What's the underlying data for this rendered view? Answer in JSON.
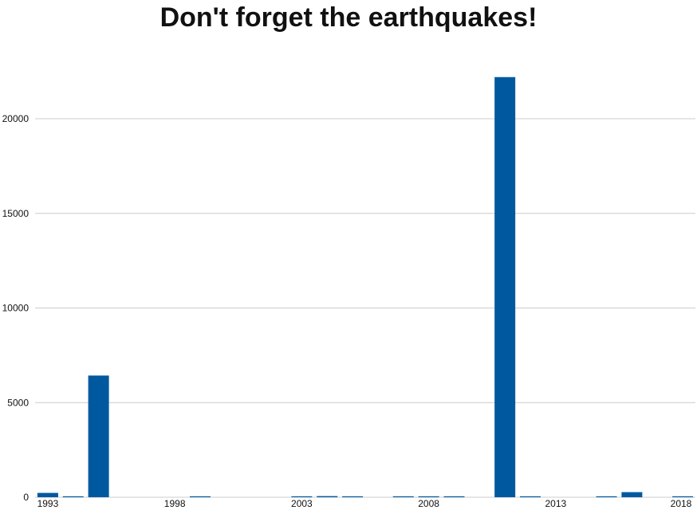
{
  "chart_data": {
    "type": "bar",
    "title": "Don't forget the earthquakes!",
    "xlabel": "",
    "ylabel": "",
    "x": [
      1993,
      1994,
      1995,
      1996,
      1997,
      1998,
      1999,
      2000,
      2001,
      2002,
      2003,
      2004,
      2005,
      2006,
      2007,
      2008,
      2009,
      2010,
      2011,
      2012,
      2013,
      2014,
      2015,
      2016,
      2017,
      2018
    ],
    "values": [
      230,
      15,
      6430,
      0,
      0,
      0,
      5,
      0,
      0,
      0,
      5,
      60,
      10,
      0,
      20,
      20,
      10,
      0,
      22200,
      10,
      0,
      0,
      5,
      270,
      0,
      5
    ],
    "ylim": [
      0,
      22500
    ],
    "yticks": [
      0,
      5000,
      10000,
      15000,
      20000
    ],
    "xticks": [
      1993,
      1998,
      2003,
      2008,
      2013,
      2018
    ],
    "grid": true,
    "legend": "none",
    "bar_color": "#00599f",
    "grid_color": "#cccccc"
  }
}
